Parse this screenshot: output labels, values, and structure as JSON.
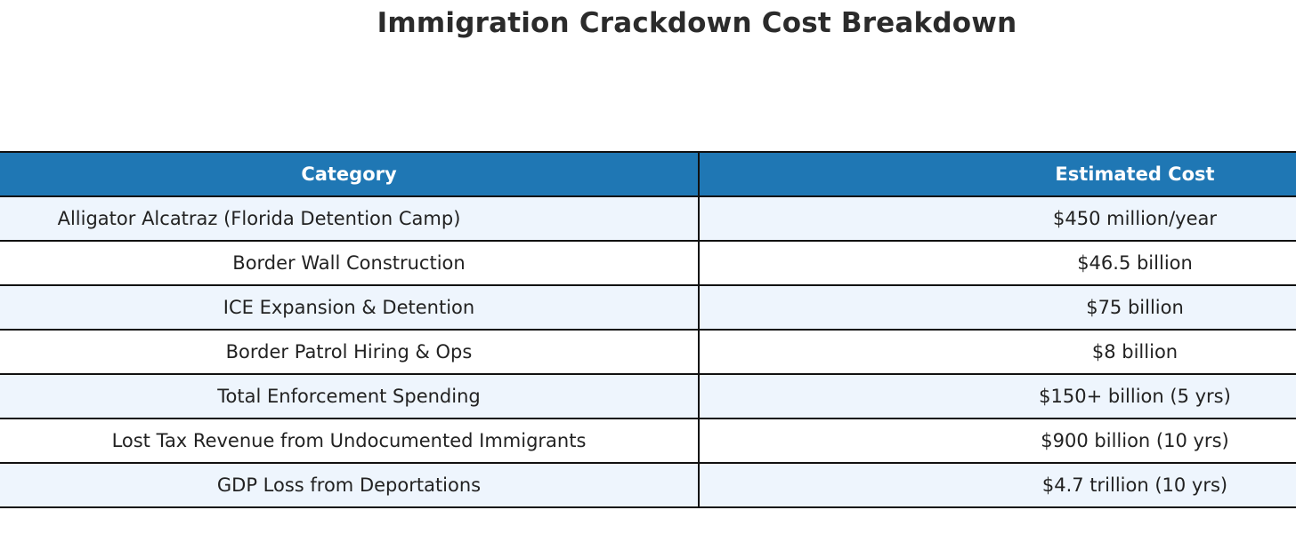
{
  "chart_data": {
    "type": "table",
    "title": "Immigration Crackdown Cost Breakdown",
    "columns": [
      "Category",
      "Estimated Cost"
    ],
    "rows": [
      {
        "category": "Alligator Alcatraz (Florida Detention Camp)",
        "cost": "$450 million/year"
      },
      {
        "category": "Border Wall Construction",
        "cost": "$46.5 billion"
      },
      {
        "category": "ICE Expansion & Detention",
        "cost": "$75 billion"
      },
      {
        "category": "Border Patrol Hiring & Ops",
        "cost": "$8 billion"
      },
      {
        "category": "Total Enforcement Spending",
        "cost": "$150+ billion (5 yrs)"
      },
      {
        "category": "Lost Tax Revenue from Undocumented Immigrants",
        "cost": "$900 billion (10 yrs)"
      },
      {
        "category": "GDP Loss from Deportations",
        "cost": "$4.7 trillion (10 yrs)"
      }
    ],
    "colors": {
      "header_bg": "#1f77b4",
      "header_text": "#ffffff",
      "odd_row_bg": "#eef5fd",
      "even_row_bg": "#ffffff",
      "border": "#111111"
    }
  }
}
